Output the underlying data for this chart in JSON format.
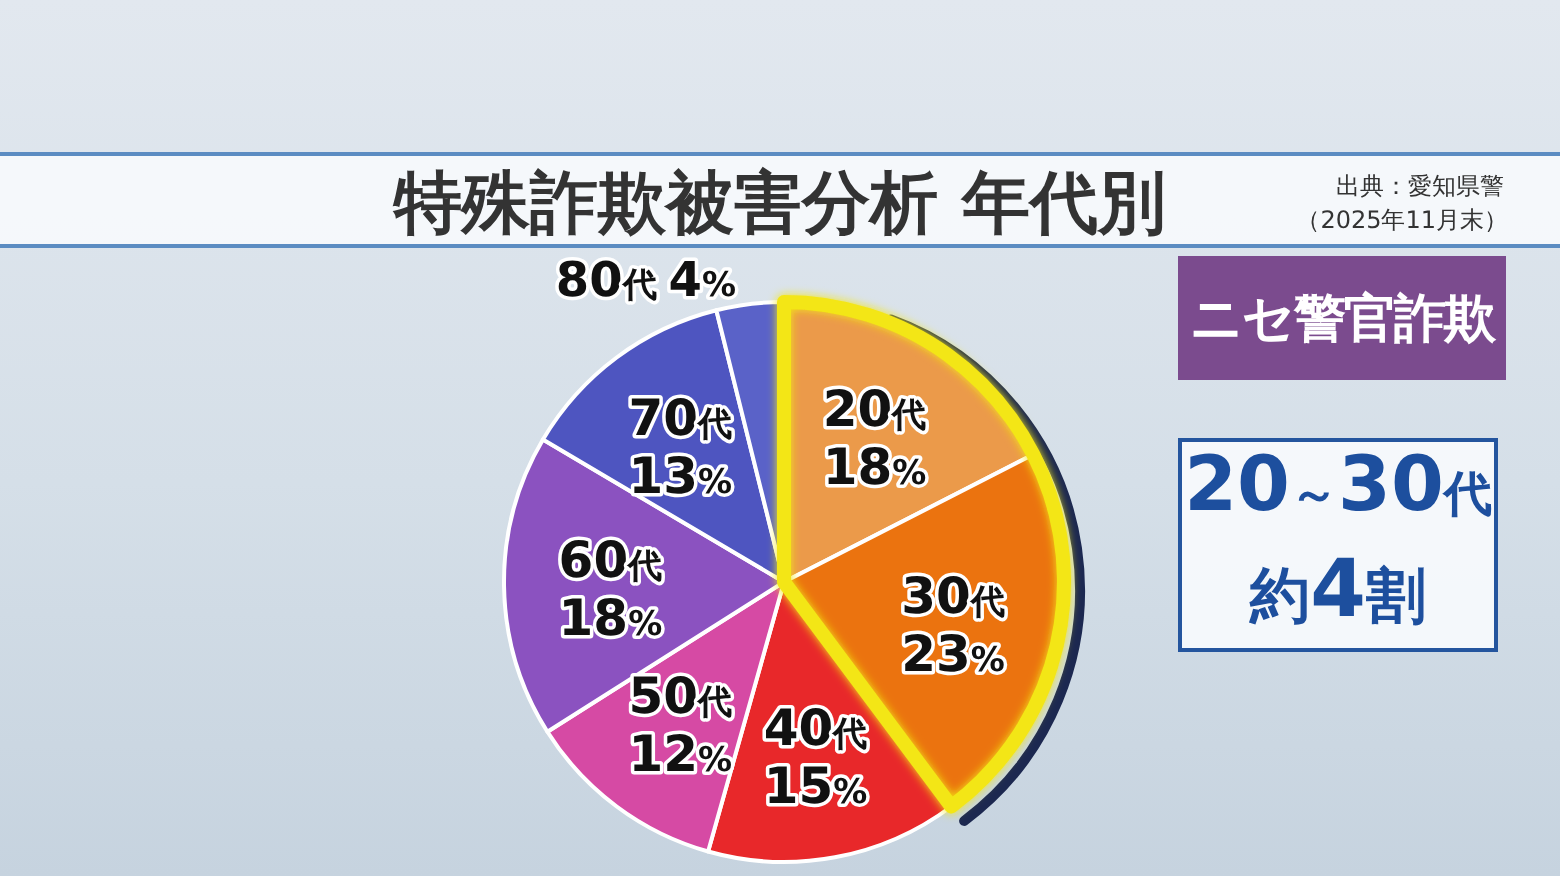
{
  "chart_data": {
    "type": "pie",
    "title": "特殊詐欺被害分析 年代別",
    "subtitle": "ニセ警官詐欺",
    "categories": [
      "20代",
      "30代",
      "40代",
      "50代",
      "60代",
      "70代",
      "80代"
    ],
    "values": [
      18,
      23,
      15,
      12,
      18,
      13,
      4
    ],
    "value_labels": [
      "18%",
      "23%",
      "15%",
      "12%",
      "18%",
      "13%",
      "4%"
    ],
    "colors": [
      "#eb9a4a",
      "#eb730f",
      "#e8282a",
      "#d64aa4",
      "#8b52c0",
      "#4e55c0",
      "#5a62c8"
    ],
    "annotations": [
      "出典：愛知県警",
      "（2025年11月末）",
      "20～30代",
      "約4割"
    ]
  }
}
